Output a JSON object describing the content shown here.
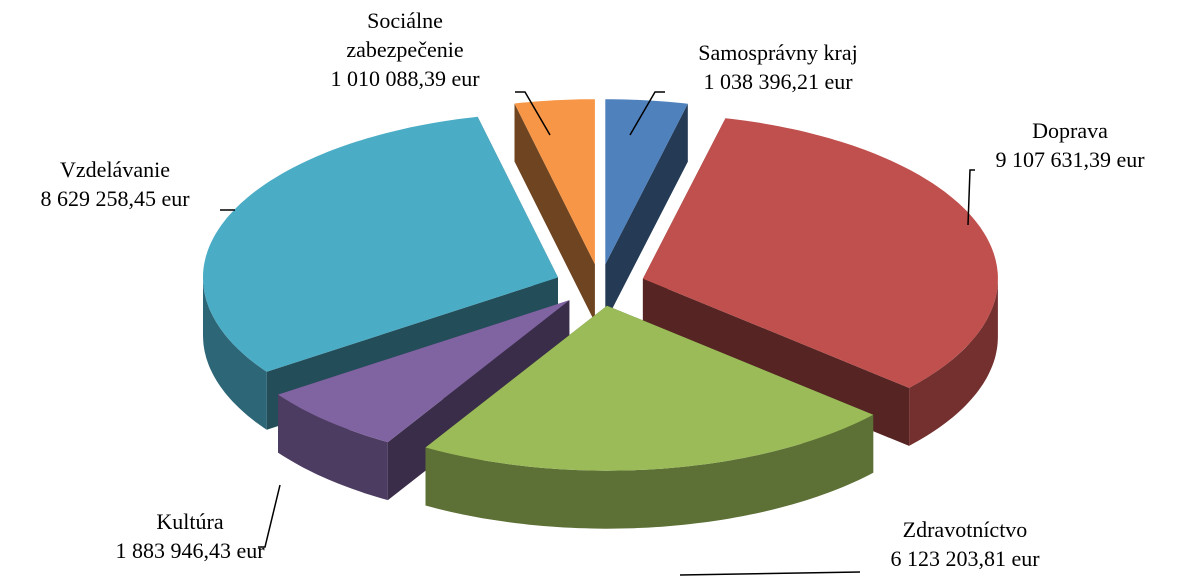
{
  "chart_data": {
    "type": "pie",
    "categories": [
      "Samosprávny kraj",
      "Doprava",
      "Zdravotníctvo",
      "Kultúra",
      "Vzdelávanie",
      "Sociálne zabezpečenie"
    ],
    "values": [
      1038396.21,
      9107631.39,
      6123203.81,
      1883946.43,
      8629258.45,
      1010088.39
    ],
    "value_labels": [
      "1 038 396,21 eur",
      "9 107 631,39 eur",
      "6 123 203,81 eur",
      "1 883 946,43 eur",
      "8 629 258,45 eur",
      "1 010 088,39 eur"
    ],
    "colors": [
      "#4f81bd",
      "#c0504d",
      "#9bbb59",
      "#8064a2",
      "#4bacc6",
      "#f79646"
    ]
  }
}
